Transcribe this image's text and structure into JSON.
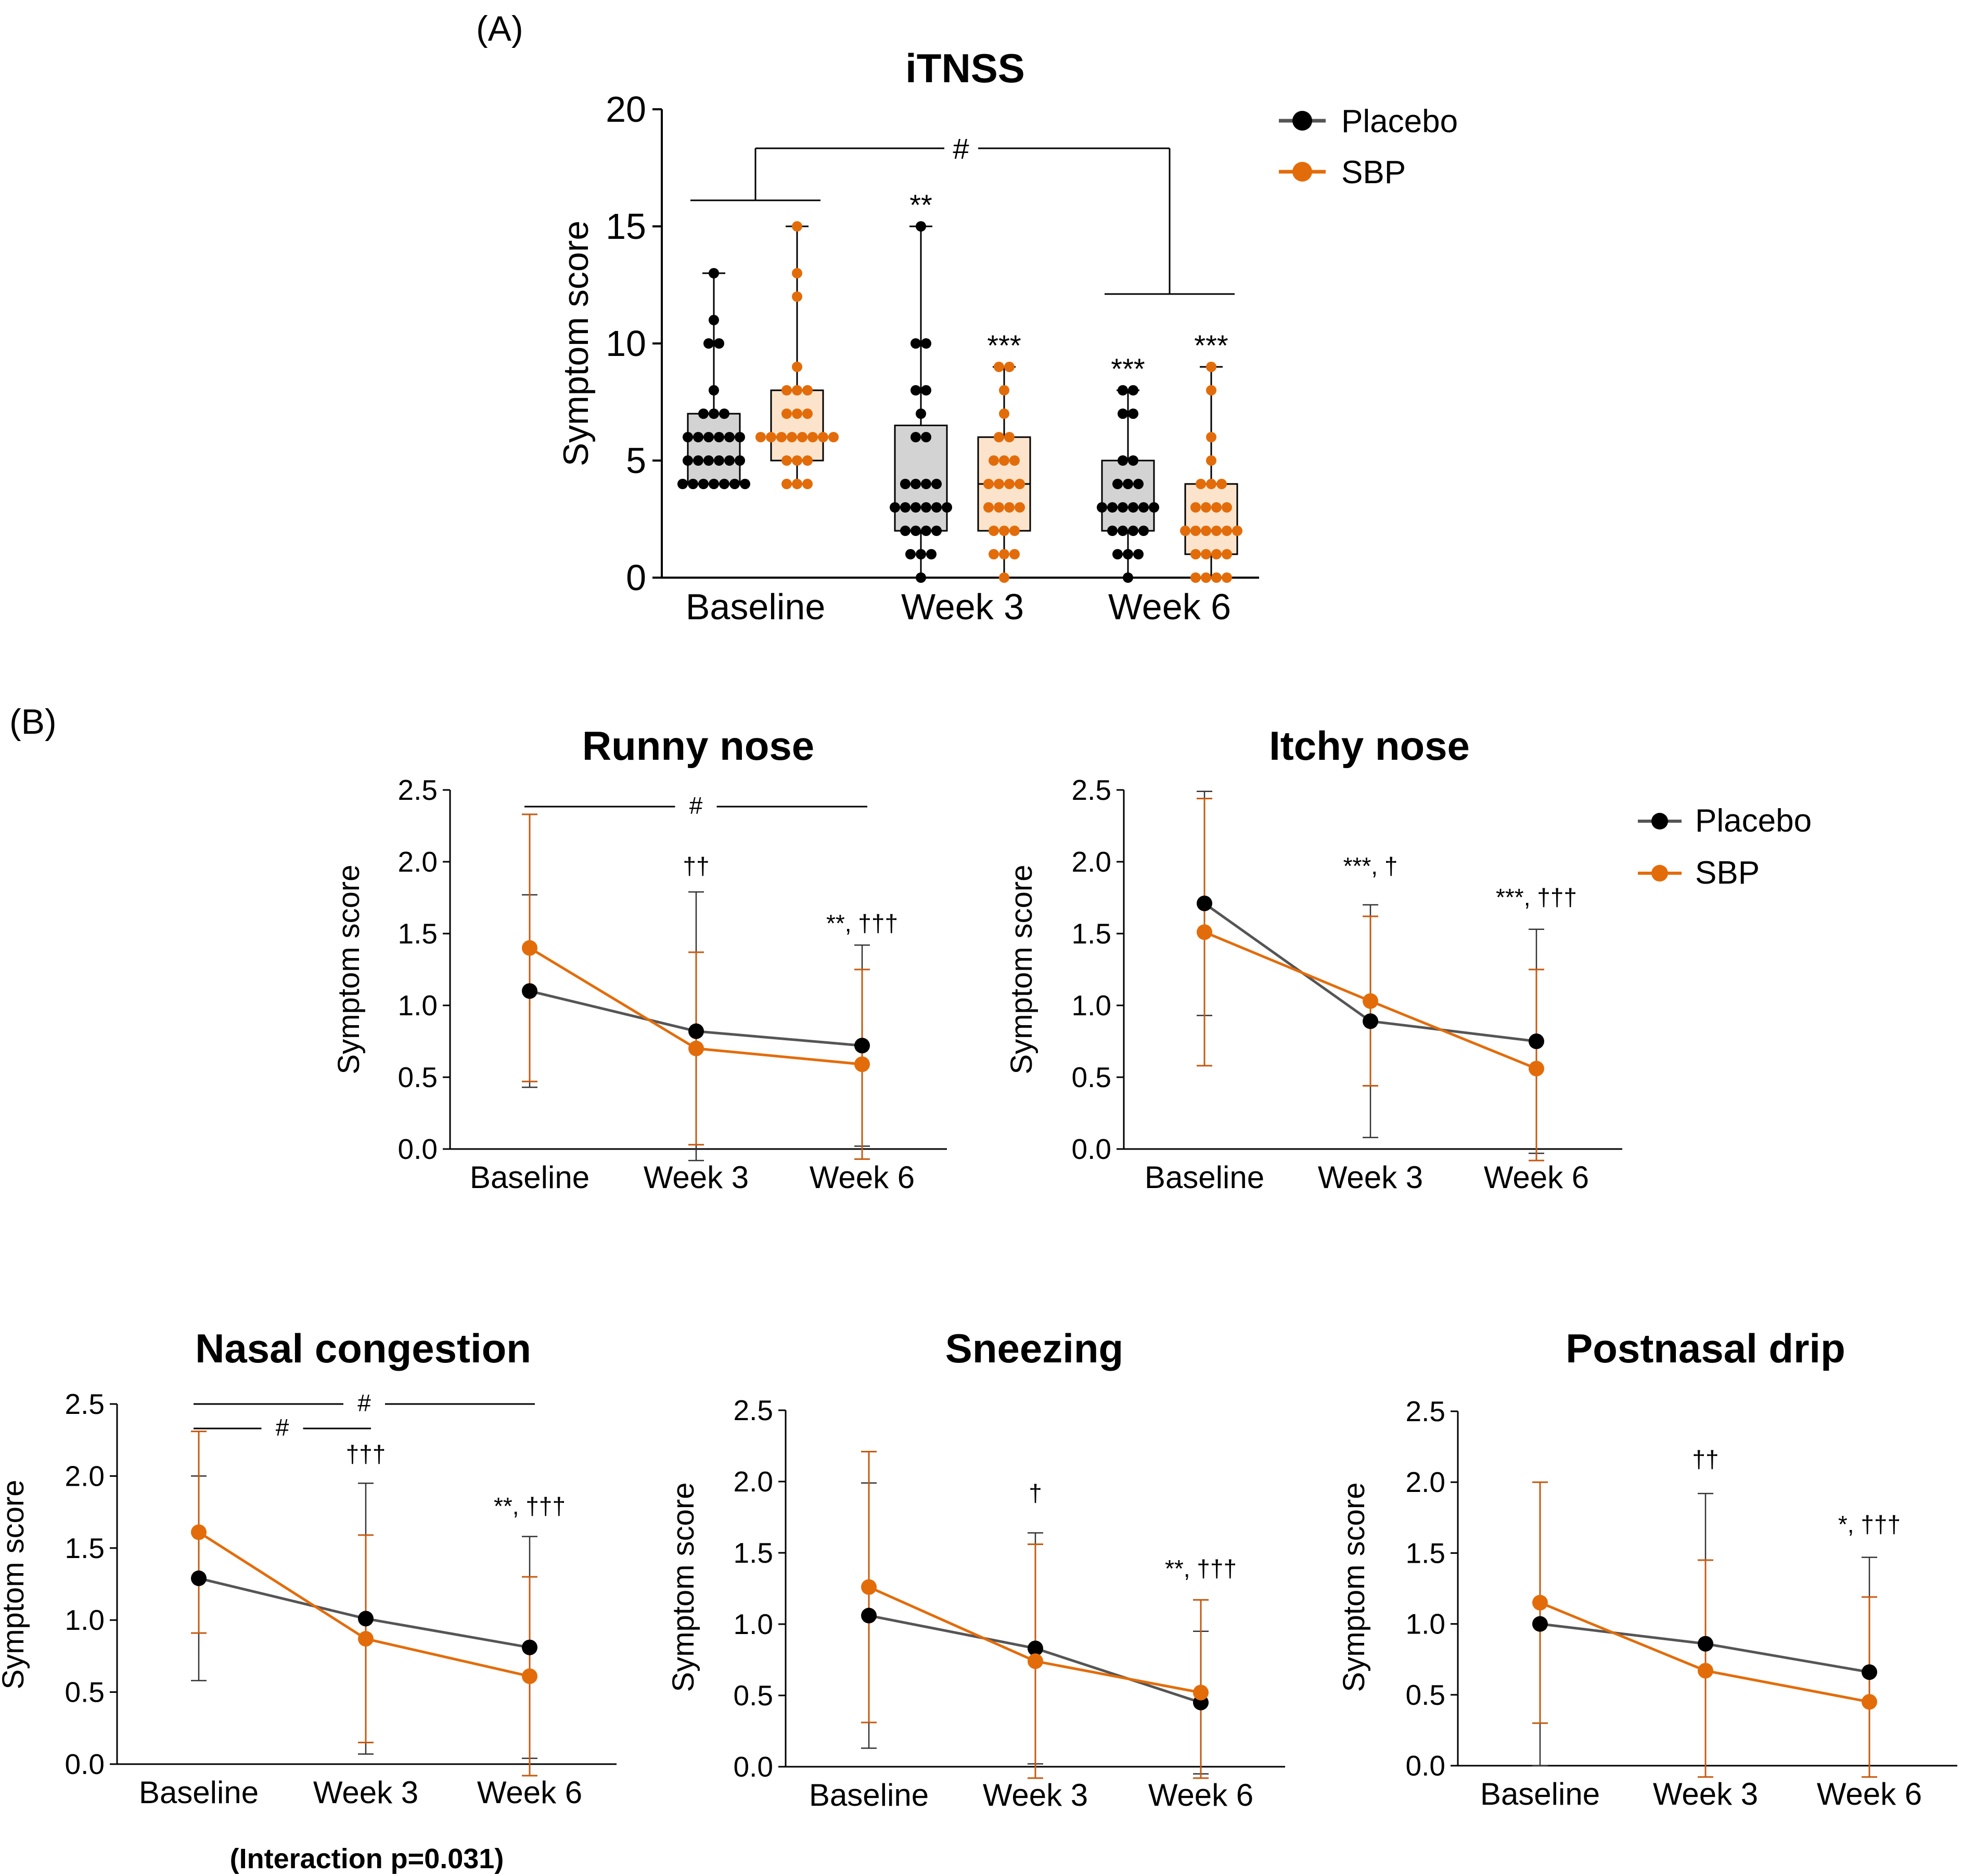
{
  "panel_labels": {
    "a": "(A)",
    "b": "(B)"
  },
  "legend": {
    "placebo": "Placebo",
    "sbp": "SBP"
  },
  "colors": {
    "placebo": "#000000",
    "placebo_line": "#555555",
    "sbp": "#E36C0A",
    "placebo_box": "#D3D3D3",
    "sbp_box": "#FCE4CC"
  },
  "note": "(Interaction p=0.031)",
  "chart_data": [
    {
      "type": "box",
      "title": "iTNSS",
      "ylabel": "Symptom score",
      "ylim": [
        0,
        20
      ],
      "yticks": [
        "0",
        "5",
        "10",
        "15",
        "20"
      ],
      "categories": [
        "Baseline",
        "Week 3",
        "Week 6"
      ],
      "series": [
        {
          "name": "Placebo",
          "boxes": [
            {
              "min": 4,
              "q1": 4,
              "median": 6,
              "q3": 7,
              "max": 13
            },
            {
              "min": 0,
              "q1": 2,
              "median": 3,
              "q3": 6.5,
              "max": 15
            },
            {
              "min": 0,
              "q1": 2,
              "median": 3,
              "q3": 5,
              "max": 8
            }
          ],
          "points": [
            [
              4,
              4,
              4,
              4,
              4,
              4,
              4,
              5,
              5,
              5,
              5,
              5,
              5,
              6,
              6,
              6,
              6,
              6,
              6,
              7,
              7,
              7,
              8,
              10,
              10,
              11,
              13
            ],
            [
              0,
              1,
              1,
              1,
              2,
              2,
              2,
              2,
              3,
              3,
              3,
              3,
              3,
              3,
              4,
              4,
              4,
              4,
              6,
              6,
              7,
              8,
              8,
              10,
              10,
              15
            ],
            [
              0,
              1,
              1,
              1,
              2,
              2,
              2,
              2,
              3,
              3,
              3,
              3,
              3,
              3,
              4,
              4,
              4,
              5,
              5,
              7,
              7,
              8,
              8
            ]
          ]
        },
        {
          "name": "SBP",
          "boxes": [
            {
              "min": 4,
              "q1": 5,
              "median": 6,
              "q3": 8,
              "max": 15
            },
            {
              "min": 0,
              "q1": 2,
              "median": 4,
              "q3": 6,
              "max": 9
            },
            {
              "min": 0,
              "q1": 1,
              "median": 2,
              "q3": 4,
              "max": 9
            }
          ],
          "points": [
            [
              4,
              4,
              4,
              5,
              5,
              5,
              6,
              6,
              6,
              6,
              6,
              6,
              6,
              6,
              7,
              7,
              7,
              8,
              8,
              8,
              9,
              12,
              13,
              15
            ],
            [
              0,
              1,
              1,
              1,
              2,
              2,
              2,
              3,
              3,
              3,
              3,
              4,
              4,
              4,
              4,
              5,
              5,
              5,
              6,
              6,
              7,
              8,
              9,
              9
            ],
            [
              0,
              0,
              0,
              0,
              1,
              1,
              1,
              1,
              2,
              2,
              2,
              2,
              2,
              2,
              3,
              3,
              3,
              3,
              4,
              4,
              4,
              5,
              6,
              8,
              9
            ]
          ]
        }
      ],
      "annotations": {
        "bracket": "#",
        "labels": [
          {
            "category": "Week 3",
            "series": "Placebo",
            "text": "**"
          },
          {
            "category": "Week 3",
            "series": "SBP",
            "text": "***"
          },
          {
            "category": "Week 6",
            "series": "Placebo",
            "text": "***"
          },
          {
            "category": "Week 6",
            "series": "SBP",
            "text": "***"
          }
        ]
      }
    },
    {
      "type": "line",
      "title": "Runny nose",
      "ylabel": "Symptom score",
      "ylim": [
        0,
        2.5
      ],
      "yticks": [
        "0.0",
        "0.5",
        "1.0",
        "1.5",
        "2.0",
        "2.5"
      ],
      "categories": [
        "Baseline",
        "Week 3",
        "Week 6"
      ],
      "series": [
        {
          "name": "Placebo",
          "values": [
            1.1,
            0.82,
            0.72
          ],
          "err": [
            0.67,
            0.97,
            0.7
          ]
        },
        {
          "name": "SBP",
          "values": [
            1.4,
            0.7,
            0.59
          ],
          "err": [
            0.93,
            0.67,
            0.66
          ]
        }
      ],
      "brackets": [
        {
          "from": 0,
          "to": 2,
          "text": "#"
        }
      ],
      "annotations": [
        "",
        "††",
        "**, †††"
      ]
    },
    {
      "type": "line",
      "title": "Itchy nose",
      "ylabel": "Symptom score",
      "ylim": [
        0,
        2.5
      ],
      "yticks": [
        "0.0",
        "0.5",
        "1.0",
        "1.5",
        "2.0",
        "2.5"
      ],
      "categories": [
        "Baseline",
        "Week 3",
        "Week 6"
      ],
      "series": [
        {
          "name": "Placebo",
          "values": [
            1.71,
            0.89,
            0.75
          ],
          "err": [
            0.78,
            0.81,
            0.78
          ]
        },
        {
          "name": "SBP",
          "values": [
            1.51,
            1.03,
            0.56
          ],
          "err": [
            0.93,
            0.59,
            0.69
          ]
        }
      ],
      "brackets": [],
      "annotations": [
        "",
        "***, †",
        "***, †††"
      ]
    },
    {
      "type": "line",
      "title": "Nasal congestion",
      "ylabel": "Symptom score",
      "ylim": [
        0,
        2.5
      ],
      "yticks": [
        "0.0",
        "0.5",
        "1.0",
        "1.5",
        "2.0",
        "2.5"
      ],
      "categories": [
        "Baseline",
        "Week 3",
        "Week 6"
      ],
      "series": [
        {
          "name": "Placebo",
          "values": [
            1.29,
            1.01,
            0.81
          ],
          "err": [
            0.71,
            0.94,
            0.77
          ]
        },
        {
          "name": "SBP",
          "values": [
            1.61,
            0.87,
            0.61
          ],
          "err": [
            0.7,
            0.72,
            0.69
          ]
        }
      ],
      "brackets": [
        {
          "from": 0,
          "to": 2,
          "text": "#"
        },
        {
          "from": 0,
          "to": 1,
          "text": "#"
        }
      ],
      "annotations": [
        "",
        "†††",
        "**, †††"
      ]
    },
    {
      "type": "line",
      "title": "Sneezing",
      "ylabel": "Symptom score",
      "ylim": [
        0,
        2.5
      ],
      "yticks": [
        "0.0",
        "0.5",
        "1.0",
        "1.5",
        "2.0",
        "2.5"
      ],
      "categories": [
        "Baseline",
        "Week 3",
        "Week 6"
      ],
      "series": [
        {
          "name": "Placebo",
          "values": [
            1.06,
            0.83,
            0.45
          ],
          "err": [
            0.93,
            0.81,
            0.5
          ]
        },
        {
          "name": "SBP",
          "values": [
            1.26,
            0.74,
            0.52
          ],
          "err": [
            0.95,
            0.82,
            0.65
          ]
        }
      ],
      "brackets": [],
      "annotations": [
        "",
        "†",
        "**, †††"
      ]
    },
    {
      "type": "line",
      "title": "Postnasal drip",
      "ylabel": "Symptom score",
      "ylim": [
        0,
        2.5
      ],
      "yticks": [
        "0.0",
        "0.5",
        "1.0",
        "1.5",
        "2.0",
        "2.5"
      ],
      "categories": [
        "Baseline",
        "Week 3",
        "Week 6"
      ],
      "series": [
        {
          "name": "Placebo",
          "values": [
            1.0,
            0.86,
            0.66
          ],
          "err": [
            1.0,
            1.06,
            0.81
          ]
        },
        {
          "name": "SBP",
          "values": [
            1.15,
            0.67,
            0.45
          ],
          "err": [
            0.85,
            0.78,
            0.74
          ]
        }
      ],
      "brackets": [],
      "annotations": [
        "",
        "††",
        "*, †††"
      ]
    }
  ]
}
